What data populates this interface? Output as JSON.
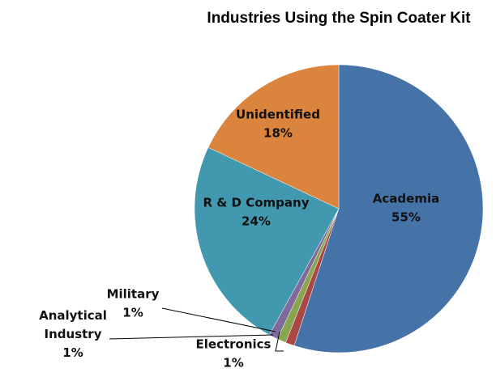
{
  "chart_data": {
    "type": "pie",
    "title": "Industries Using the Spin Coater Kit",
    "start_angle_deg": 0,
    "direction": "clockwise",
    "legend": "none",
    "slices": [
      {
        "name": "Academia",
        "value": 55,
        "label": "55%",
        "color": "#4572A7"
      },
      {
        "name": "Electronics",
        "value": 1,
        "label": "1%",
        "color": "#AA4643"
      },
      {
        "name": "Analytical Industry",
        "name_lines": [
          "Analytical",
          "Industry"
        ],
        "value": 1,
        "label": "1%",
        "color": "#89A54E"
      },
      {
        "name": "Military",
        "value": 1,
        "label": "1%",
        "color": "#80699B"
      },
      {
        "name": "R & D Company",
        "value": 24,
        "label": "24%",
        "color": "#4198AF"
      },
      {
        "name": "Unidentified",
        "value": 18,
        "label": "18%",
        "color": "#DB843D"
      }
    ]
  }
}
